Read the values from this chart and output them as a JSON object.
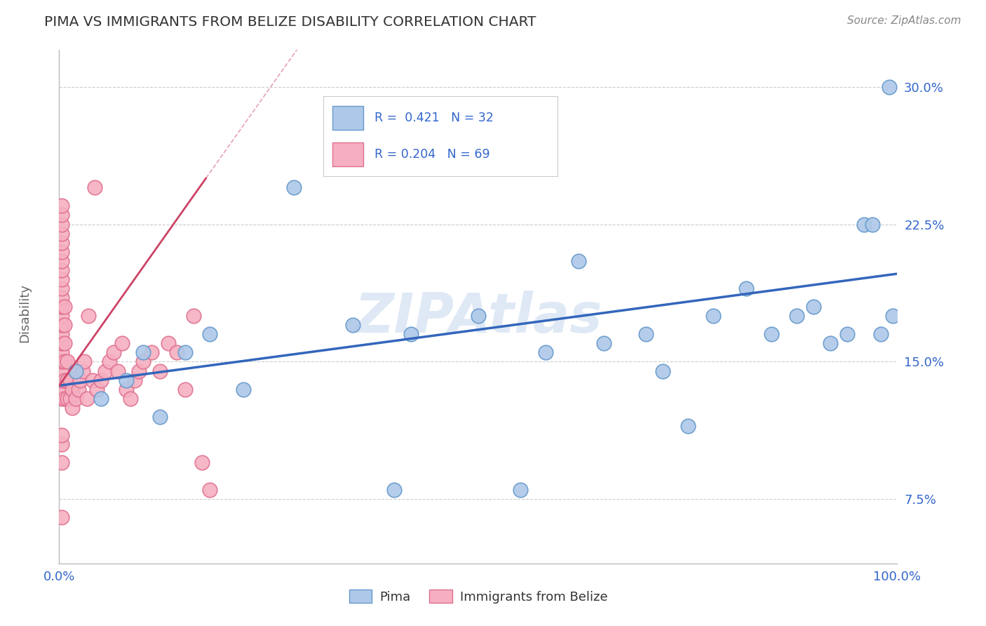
{
  "title": "PIMA VS IMMIGRANTS FROM BELIZE DISABILITY CORRELATION CHART",
  "source": "Source: ZipAtlas.com",
  "ylabel": "Disability",
  "watermark": "ZIPAtlas",
  "xlim": [
    0.0,
    1.0
  ],
  "ylim": [
    0.04,
    0.32
  ],
  "yticks": [
    0.075,
    0.15,
    0.225,
    0.3
  ],
  "ytick_labels": [
    "7.5%",
    "15.0%",
    "22.5%",
    "30.0%"
  ],
  "xticks": [
    0.0,
    1.0
  ],
  "xtick_labels": [
    "0.0%",
    "100.0%"
  ],
  "pima_color": "#adc8e8",
  "belize_color": "#f5afc0",
  "pima_edge_color": "#6699cc",
  "belize_edge_color": "#e07090",
  "trend_blue_color": "#3366bb",
  "trend_pink_color": "#cc4466",
  "pima_scatter_x": [
    0.02,
    0.05,
    0.08,
    0.1,
    0.12,
    0.15,
    0.18,
    0.22,
    0.28,
    0.35,
    0.42,
    0.5,
    0.55,
    0.58,
    0.62,
    0.65,
    0.7,
    0.72,
    0.75,
    0.78,
    0.82,
    0.85,
    0.88,
    0.9,
    0.92,
    0.94,
    0.96,
    0.97,
    0.98,
    0.99,
    0.995,
    0.4
  ],
  "pima_scatter_y": [
    0.145,
    0.13,
    0.14,
    0.155,
    0.12,
    0.155,
    0.165,
    0.135,
    0.245,
    0.17,
    0.165,
    0.175,
    0.08,
    0.155,
    0.205,
    0.16,
    0.165,
    0.145,
    0.115,
    0.175,
    0.19,
    0.165,
    0.175,
    0.18,
    0.16,
    0.165,
    0.225,
    0.225,
    0.165,
    0.3,
    0.175,
    0.08
  ],
  "belize_scatter_x": [
    0.003,
    0.003,
    0.003,
    0.003,
    0.003,
    0.003,
    0.003,
    0.003,
    0.003,
    0.003,
    0.003,
    0.003,
    0.003,
    0.003,
    0.003,
    0.003,
    0.003,
    0.003,
    0.003,
    0.003,
    0.003,
    0.003,
    0.006,
    0.006,
    0.006,
    0.006,
    0.006,
    0.006,
    0.01,
    0.01,
    0.01,
    0.013,
    0.013,
    0.016,
    0.016,
    0.02,
    0.02,
    0.023,
    0.025,
    0.028,
    0.03,
    0.033,
    0.035,
    0.04,
    0.042,
    0.045,
    0.05,
    0.055,
    0.06,
    0.065,
    0.07,
    0.075,
    0.08,
    0.085,
    0.09,
    0.095,
    0.1,
    0.11,
    0.12,
    0.13,
    0.14,
    0.15,
    0.16,
    0.17,
    0.18,
    0.003,
    0.003,
    0.003,
    0.003
  ],
  "belize_scatter_y": [
    0.13,
    0.135,
    0.14,
    0.145,
    0.15,
    0.155,
    0.16,
    0.165,
    0.17,
    0.175,
    0.18,
    0.185,
    0.19,
    0.195,
    0.2,
    0.205,
    0.21,
    0.215,
    0.22,
    0.225,
    0.23,
    0.235,
    0.13,
    0.14,
    0.15,
    0.16,
    0.17,
    0.18,
    0.13,
    0.14,
    0.15,
    0.13,
    0.14,
    0.125,
    0.135,
    0.13,
    0.145,
    0.135,
    0.14,
    0.145,
    0.15,
    0.13,
    0.175,
    0.14,
    0.245,
    0.135,
    0.14,
    0.145,
    0.15,
    0.155,
    0.145,
    0.16,
    0.135,
    0.13,
    0.14,
    0.145,
    0.15,
    0.155,
    0.145,
    0.16,
    0.155,
    0.135,
    0.175,
    0.095,
    0.08,
    0.095,
    0.105,
    0.11,
    0.065
  ],
  "blue_trend": [
    0.0,
    0.137,
    1.0,
    0.198
  ],
  "pink_trend": [
    0.0,
    0.137,
    0.175,
    0.25
  ],
  "grid_color": "#cccccc",
  "bg_color": "#ffffff",
  "title_color": "#333333",
  "axis_label_color": "#666666",
  "tick_color": "#3366cc"
}
